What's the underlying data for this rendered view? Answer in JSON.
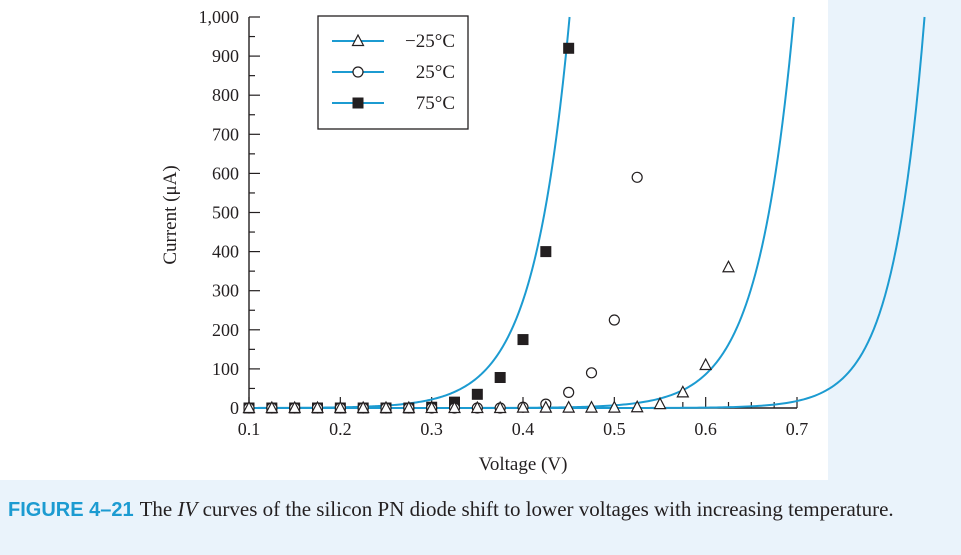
{
  "chart_data": {
    "type": "line",
    "title": "",
    "xlabel": "Voltage (V)",
    "ylabel": "Current (μA)",
    "xlim": [
      0.1,
      0.7
    ],
    "ylim": [
      0,
      1000
    ],
    "x_ticks": [
      0.1,
      0.2,
      0.3,
      0.4,
      0.5,
      0.6,
      0.7
    ],
    "x_tick_labels": [
      "0.1",
      "0.2",
      "0.3",
      "0.4",
      "0.5",
      "0.6",
      "0.7"
    ],
    "y_ticks": [
      0,
      100,
      200,
      300,
      400,
      500,
      600,
      700,
      800,
      900,
      1000
    ],
    "y_tick_labels": [
      "0",
      "100",
      "200",
      "300",
      "400",
      "500",
      "600",
      "700",
      "800",
      "900",
      "1,000"
    ],
    "legend_position": "top-center",
    "line_color": "#1c9bd1",
    "series": [
      {
        "name": "−25°C",
        "marker": "triangle",
        "curve": {
          "Is": 3.1e-08,
          "Vt": 0.0347
        },
        "points": [
          {
            "x": 0.1,
            "y": 0
          },
          {
            "x": 0.125,
            "y": 0
          },
          {
            "x": 0.15,
            "y": 0
          },
          {
            "x": 0.175,
            "y": 0
          },
          {
            "x": 0.2,
            "y": 0
          },
          {
            "x": 0.225,
            "y": 0
          },
          {
            "x": 0.25,
            "y": 0
          },
          {
            "x": 0.275,
            "y": 0
          },
          {
            "x": 0.3,
            "y": 0
          },
          {
            "x": 0.325,
            "y": 0
          },
          {
            "x": 0.35,
            "y": 0
          },
          {
            "x": 0.375,
            "y": 0
          },
          {
            "x": 0.4,
            "y": 1
          },
          {
            "x": 0.425,
            "y": 1
          },
          {
            "x": 0.45,
            "y": 1
          },
          {
            "x": 0.475,
            "y": 1
          },
          {
            "x": 0.5,
            "y": 1
          },
          {
            "x": 0.525,
            "y": 2
          },
          {
            "x": 0.55,
            "y": 10
          },
          {
            "x": 0.575,
            "y": 40
          },
          {
            "x": 0.6,
            "y": 110
          },
          {
            "x": 0.625,
            "y": 360
          }
        ]
      },
      {
        "name": "25°C",
        "marker": "circle",
        "curve": {
          "Is": 2.1e-05,
          "Vt": 0.0394
        },
        "points": [
          {
            "x": 0.1,
            "y": 0
          },
          {
            "x": 0.125,
            "y": 0
          },
          {
            "x": 0.15,
            "y": 0
          },
          {
            "x": 0.175,
            "y": 0
          },
          {
            "x": 0.2,
            "y": 0
          },
          {
            "x": 0.225,
            "y": 0
          },
          {
            "x": 0.25,
            "y": 0
          },
          {
            "x": 0.275,
            "y": 0
          },
          {
            "x": 0.3,
            "y": 0
          },
          {
            "x": 0.325,
            "y": 0
          },
          {
            "x": 0.35,
            "y": 0
          },
          {
            "x": 0.375,
            "y": 0
          },
          {
            "x": 0.4,
            "y": 2
          },
          {
            "x": 0.425,
            "y": 10
          },
          {
            "x": 0.45,
            "y": 40
          },
          {
            "x": 0.475,
            "y": 90
          },
          {
            "x": 0.5,
            "y": 225
          },
          {
            "x": 0.525,
            "y": 590
          }
        ]
      },
      {
        "name": "75°C",
        "marker": "square",
        "curve": {
          "Is": 0.011,
          "Vt": 0.0395
        },
        "points": [
          {
            "x": 0.1,
            "y": 0
          },
          {
            "x": 0.125,
            "y": 0
          },
          {
            "x": 0.15,
            "y": 0
          },
          {
            "x": 0.175,
            "y": 0
          },
          {
            "x": 0.2,
            "y": 0
          },
          {
            "x": 0.225,
            "y": 0
          },
          {
            "x": 0.25,
            "y": 0
          },
          {
            "x": 0.275,
            "y": 0
          },
          {
            "x": 0.3,
            "y": 2
          },
          {
            "x": 0.325,
            "y": 15
          },
          {
            "x": 0.35,
            "y": 35
          },
          {
            "x": 0.375,
            "y": 78
          },
          {
            "x": 0.4,
            "y": 175
          },
          {
            "x": 0.425,
            "y": 400
          },
          {
            "x": 0.45,
            "y": 920
          }
        ]
      }
    ]
  },
  "caption": {
    "label": "FIGURE 4–21",
    "text_before": "The ",
    "italic": "IV",
    "text_after": " curves of the silicon PN diode shift to lower voltages with increasing temperature."
  }
}
